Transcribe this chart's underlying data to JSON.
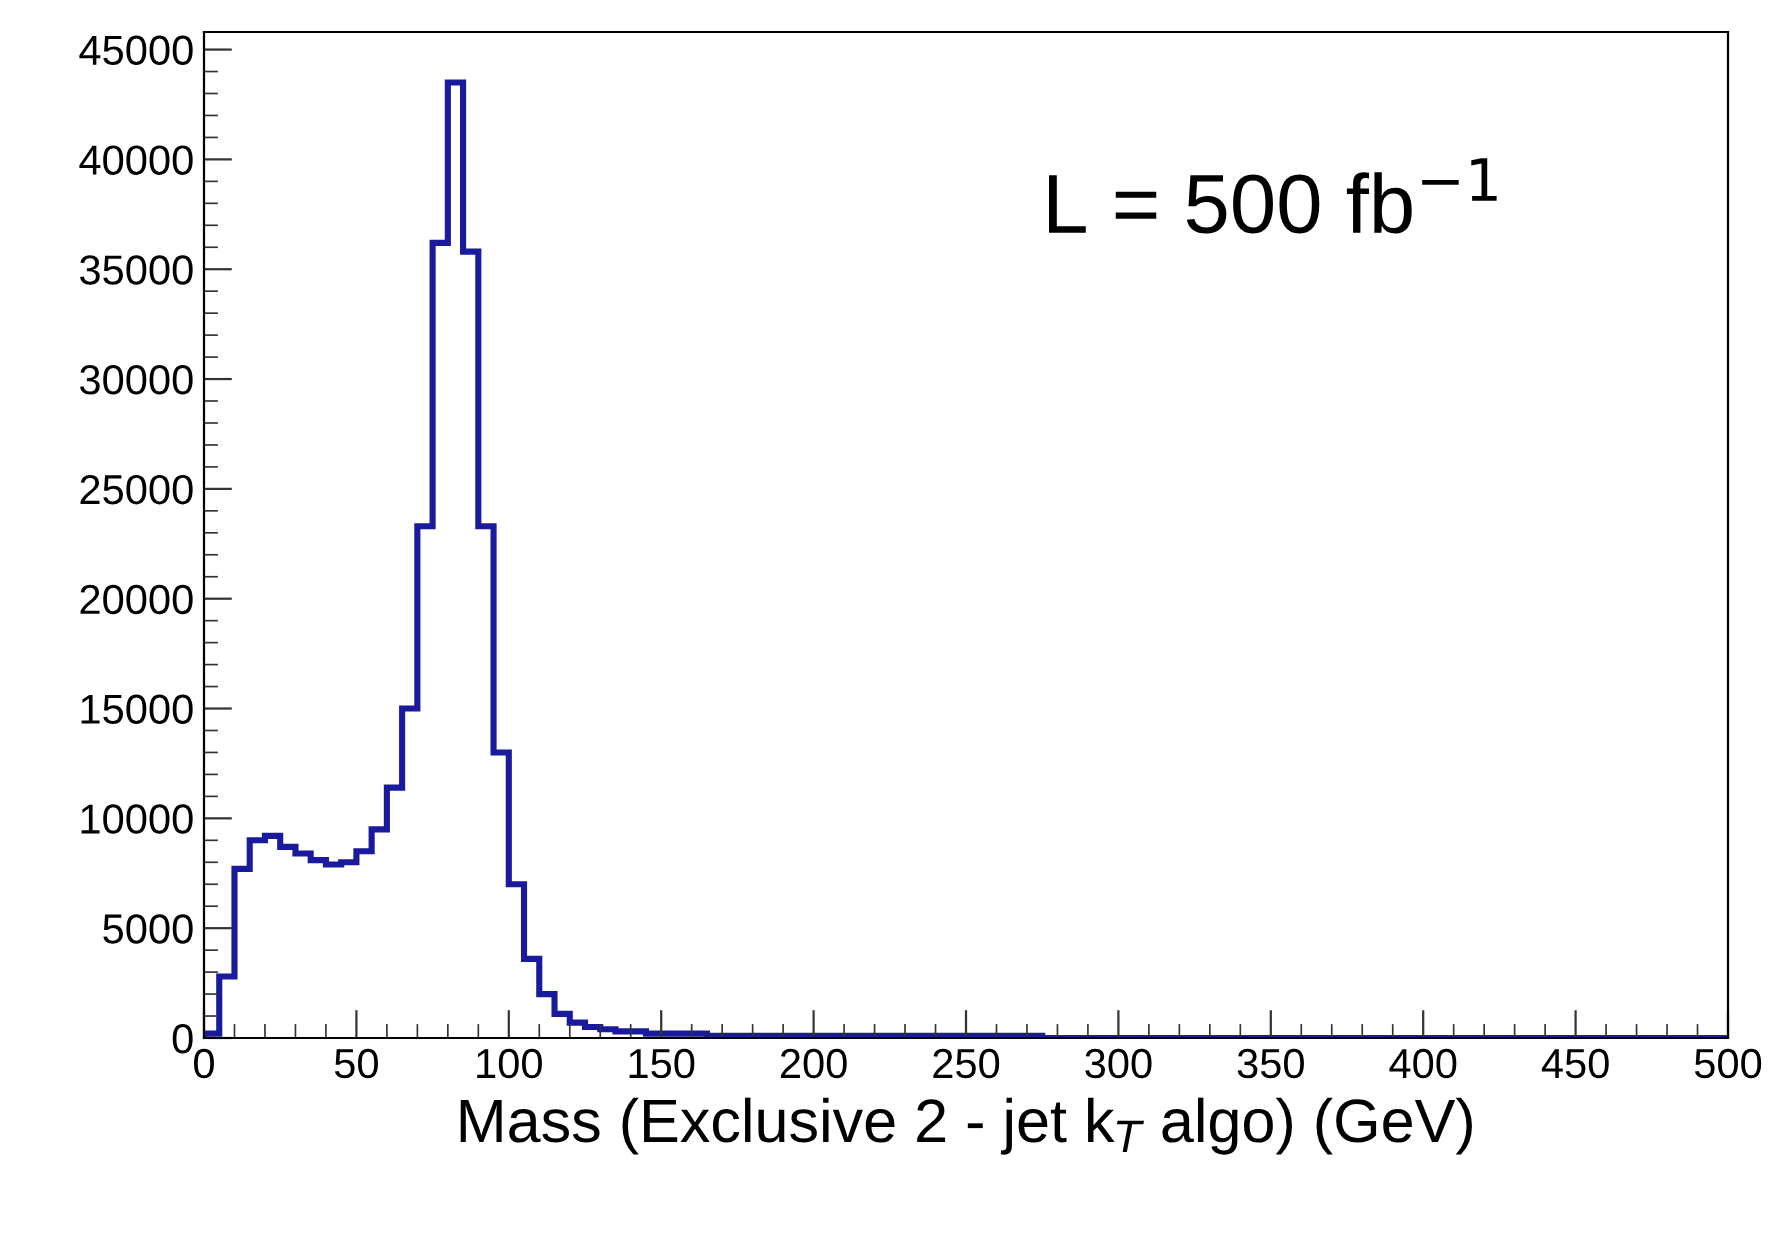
{
  "chart_data": {
    "type": "histogram",
    "xlabel": "Mass (Exclusive 2 - jet k$_{T}$ algo) (GeV)",
    "annotations": [
      "L = 500 fb$^{−1}$"
    ],
    "bins": [
      0,
      5,
      10,
      15,
      20,
      25,
      30,
      35,
      40,
      45,
      50,
      55,
      60,
      65,
      70,
      75,
      80,
      85,
      90,
      95,
      100,
      105,
      110,
      115,
      120,
      125,
      130,
      135,
      140,
      145,
      150,
      155,
      160,
      165,
      170,
      175,
      180,
      185,
      190,
      195,
      200,
      205,
      210,
      215,
      220,
      225,
      230,
      235,
      240,
      245,
      250,
      255,
      260,
      265,
      270,
      275,
      280,
      285,
      290,
      295,
      300,
      305,
      310,
      315,
      320,
      325,
      330,
      335,
      340,
      345,
      350,
      355,
      360,
      365,
      370,
      375,
      380,
      385,
      390,
      395,
      400,
      405,
      410,
      415,
      420,
      425,
      430,
      435,
      440,
      445,
      450,
      455,
      460,
      465,
      470,
      475,
      480,
      485,
      490,
      495,
      500
    ],
    "values": [
      200,
      2800,
      7700,
      9000,
      9200,
      8700,
      8400,
      8100,
      7900,
      8000,
      8500,
      9500,
      11400,
      15000,
      23300,
      36200,
      43500,
      35800,
      23300,
      13000,
      7000,
      3600,
      2000,
      1100,
      700,
      500,
      400,
      300,
      300,
      200,
      200,
      200,
      200,
      100,
      100,
      100,
      100,
      100,
      100,
      100,
      100,
      100,
      100,
      100,
      100,
      100,
      100,
      100,
      100,
      100,
      100,
      100,
      100,
      100,
      100,
      0,
      0,
      0,
      0,
      0,
      0,
      0,
      0,
      0,
      0,
      0,
      0,
      0,
      0,
      0,
      0,
      0,
      0,
      0,
      0,
      0,
      0,
      0,
      0,
      0,
      0,
      0,
      0,
      0,
      0,
      0,
      0,
      0,
      0,
      0,
      0,
      0,
      0,
      0,
      0,
      0,
      0,
      0,
      0,
      0
    ],
    "color": "#1a1a9c",
    "xlim": [
      0,
      500
    ],
    "xticks": [
      0,
      50,
      100,
      150,
      200,
      250,
      300,
      350,
      400,
      450,
      500
    ],
    "ylim": [
      0,
      45800
    ],
    "yticks": [
      0,
      5000,
      10000,
      15000,
      20000,
      25000,
      30000,
      35000,
      40000,
      45000
    ],
    "grid": false
  }
}
